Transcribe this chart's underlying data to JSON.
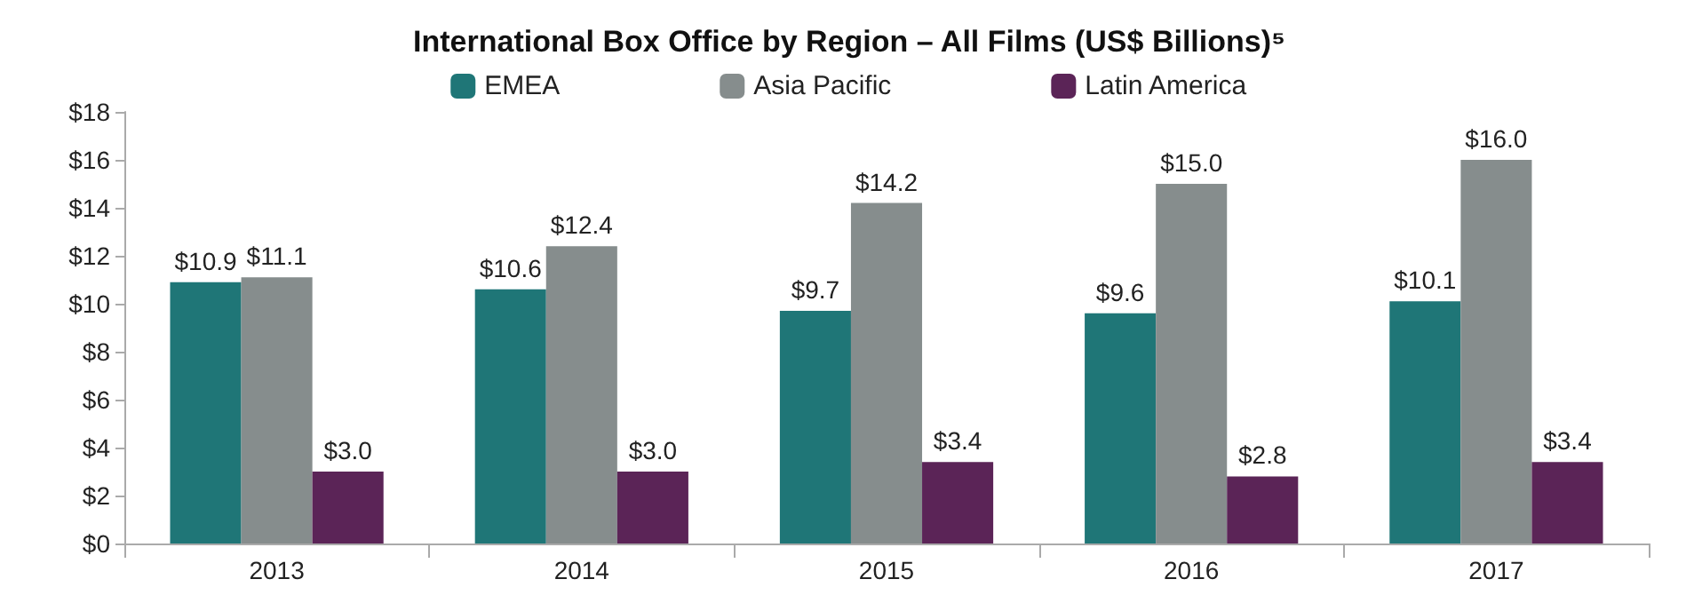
{
  "chart_data": {
    "type": "bar",
    "title": "International Box Office by Region – All Films (US$ Billions)⁵",
    "categories": [
      "2013",
      "2014",
      "2015",
      "2016",
      "2017"
    ],
    "series": [
      {
        "name": "EMEA",
        "color": "#1f7677",
        "values": [
          10.9,
          10.6,
          9.7,
          9.6,
          10.1
        ],
        "value_labels": [
          "$10.9",
          "$10.6",
          "$9.7",
          "$9.6",
          "$10.1"
        ]
      },
      {
        "name": "Asia Pacific",
        "color": "#868d8d",
        "values": [
          11.1,
          12.4,
          14.2,
          15.0,
          16.0
        ],
        "value_labels": [
          "$11.1",
          "$12.4",
          "$14.2",
          "$15.0",
          "$16.0"
        ]
      },
      {
        "name": "Latin America",
        "color": "#5b2457",
        "values": [
          3.0,
          3.0,
          3.4,
          2.8,
          3.4
        ],
        "value_labels": [
          "$3.0",
          "$3.0",
          "$3.4",
          "$2.8",
          "$3.4"
        ]
      }
    ],
    "ylim": [
      0,
      18
    ],
    "yticks": [
      {
        "value": 0,
        "label": "$0"
      },
      {
        "value": 2,
        "label": "$2"
      },
      {
        "value": 4,
        "label": "$4"
      },
      {
        "value": 6,
        "label": "$6"
      },
      {
        "value": 8,
        "label": "$8"
      },
      {
        "value": 10,
        "label": "$10"
      },
      {
        "value": 12,
        "label": "$12"
      },
      {
        "value": 14,
        "label": "$14"
      },
      {
        "value": 16,
        "label": "$16"
      },
      {
        "value": 18,
        "label": "$18"
      }
    ],
    "grid": false,
    "legend": "top"
  }
}
